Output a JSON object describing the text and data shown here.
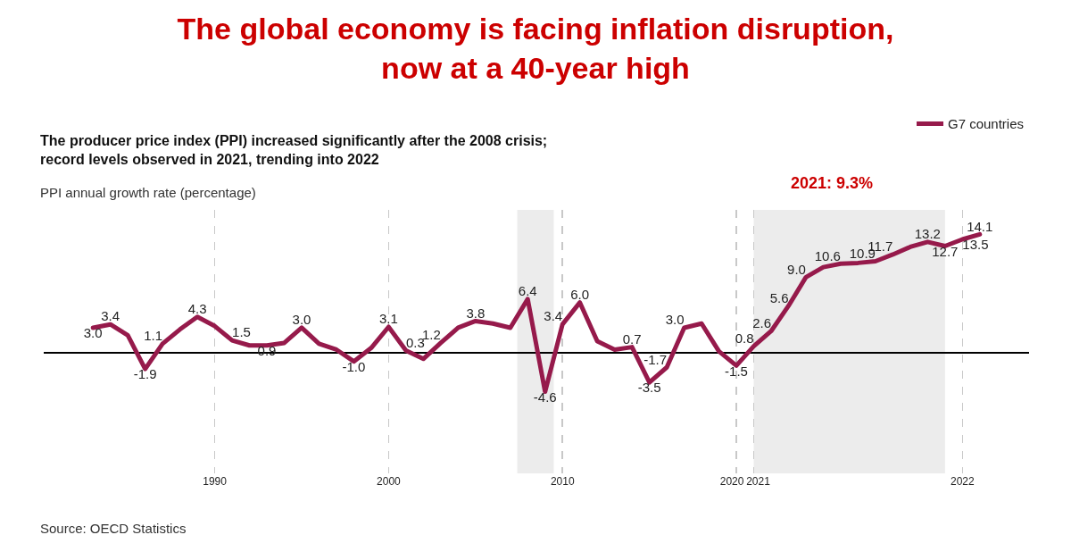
{
  "chart_data": {
    "type": "line",
    "title": "The global economy is facing inflation disruption,\nnow at a 40-year high",
    "subtitle": "The producer price index (PPI) increased significantly after the 2008 crisis;\nrecord levels observed in 2021, trending into 2022",
    "ylabel": "PPI annual growth rate (percentage)",
    "categories": [
      null,
      null,
      null,
      null,
      null,
      null,
      null,
      "1990",
      null,
      null,
      null,
      null,
      null,
      null,
      null,
      null,
      null,
      "2000",
      null,
      null,
      null,
      null,
      null,
      null,
      null,
      null,
      null,
      "2010",
      null,
      null,
      null,
      null,
      null,
      null,
      null,
      null,
      null,
      "2020",
      "2021",
      null,
      null,
      null,
      null,
      null,
      null,
      null,
      null,
      null,
      null,
      null,
      "2022",
      null
    ],
    "series": [
      {
        "name": "G7 countries",
        "color": "#961a4b",
        "values": [
          3.0,
          3.4,
          2.1,
          -1.9,
          1.1,
          2.8,
          4.3,
          3.2,
          1.5,
          0.9,
          0.9,
          1.2,
          3.0,
          1.1,
          0.4,
          -1.0,
          0.6,
          3.1,
          0.3,
          -0.7,
          1.2,
          3.0,
          3.8,
          3.5,
          3.0,
          6.4,
          -4.6,
          3.4,
          6.0,
          1.4,
          0.4,
          0.7,
          -3.5,
          -1.7,
          3.0,
          3.5,
          0.2,
          -1.5,
          0.8,
          2.6,
          5.6,
          9.0,
          10.2,
          10.6,
          10.7,
          10.9,
          11.7,
          12.6,
          13.2,
          12.7,
          13.5,
          14.1
        ],
        "value_labels": [
          "3.0",
          "3.4",
          null,
          "-1.9",
          "1.1",
          null,
          "4.3",
          null,
          "1.5",
          null,
          "0.9",
          null,
          "3.0",
          null,
          null,
          "-1.0",
          null,
          "3.1",
          "0.3",
          null,
          "1.2",
          null,
          "3.8",
          null,
          null,
          "6.4",
          "-4.6",
          "3.4",
          "6.0",
          null,
          null,
          "0.7",
          "-3.5",
          "-1.7",
          "3.0",
          null,
          null,
          "-1.5",
          "0.8",
          "2.6",
          "5.6",
          "9.0",
          null,
          "10.6",
          null,
          "10.9",
          "11.7",
          null,
          "13.2",
          "12.7",
          "13.5",
          "14.1"
        ]
      }
    ],
    "ylim": [
      -14.3,
      17
    ],
    "tick_labels": "x",
    "grid": "x",
    "legend": "top right",
    "marker": "none",
    "line_style": "solid",
    "annotations": [
      "2021: 9.3%",
      "Source: OECD Statistics"
    ]
  }
}
